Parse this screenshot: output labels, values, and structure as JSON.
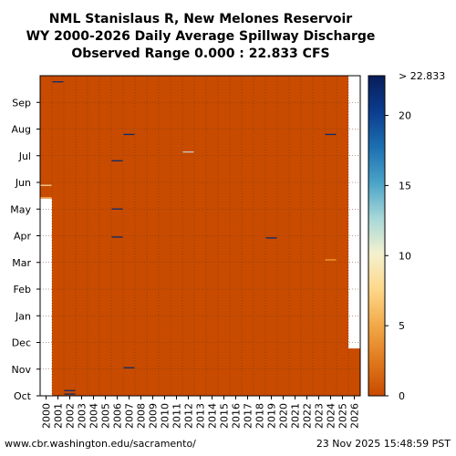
{
  "chart_data": {
    "type": "heatmap",
    "title_lines": [
      "NML Stanislaus R, New Melones Reservoir",
      "WY 2000-2026 Daily Average Spillway Discharge",
      "Observed Range 0.000 : 22.833 CFS"
    ],
    "x_categories": [
      "2000",
      "2001",
      "2002",
      "2003",
      "2004",
      "2005",
      "2006",
      "2007",
      "2008",
      "2009",
      "2010",
      "2011",
      "2012",
      "2013",
      "2014",
      "2015",
      "2016",
      "2017",
      "2018",
      "2019",
      "2020",
      "2021",
      "2022",
      "2023",
      "2024",
      "2025",
      "2026"
    ],
    "y_months": [
      "Oct",
      "Nov",
      "Dec",
      "Jan",
      "Feb",
      "Mar",
      "Apr",
      "May",
      "Jun",
      "Jul",
      "Aug",
      "Sep"
    ],
    "value_range": [
      0,
      22.833
    ],
    "units": "CFS",
    "baseline_value": 0,
    "grid": true,
    "colorbar": {
      "ticks": [
        0,
        5,
        10,
        15,
        20
      ],
      "top_label": "> 22.833",
      "colors": [
        "#c84b00",
        "#e07a1e",
        "#f2aa4a",
        "#fdd88a",
        "#f4f1cf",
        "#a6d7d8",
        "#4aa3c8",
        "#1c6fb0",
        "#0b3c8e",
        "#081d58"
      ]
    },
    "missing": [
      {
        "year": "2000",
        "from_day": 0,
        "to_day": 225
      },
      {
        "year": "2026",
        "from_day": 54,
        "to_day": 365
      }
    ],
    "events": [
      {
        "year": "2000",
        "day": 226,
        "value": 4,
        "color": "#f0a030"
      },
      {
        "year": "2000",
        "day": 240,
        "value": 9,
        "color": "#f6d4a0"
      },
      {
        "year": "2001",
        "day": 358,
        "value": 22,
        "color": "#0a2a6a"
      },
      {
        "year": "2002",
        "day": 2,
        "value": 22,
        "color": "#0a2a6a"
      },
      {
        "year": "2002",
        "day": 6,
        "value": 22,
        "color": "#0a2a6a"
      },
      {
        "year": "2006",
        "day": 181,
        "value": 22,
        "color": "#0a2a6a"
      },
      {
        "year": "2006",
        "day": 213,
        "value": 22,
        "color": "#0a2a6a"
      },
      {
        "year": "2006",
        "day": 268,
        "value": 22,
        "color": "#0a2a6a"
      },
      {
        "year": "2007",
        "day": 32,
        "value": 22,
        "color": "#0a2a6a"
      },
      {
        "year": "2007",
        "day": 298,
        "value": 22,
        "color": "#0a2a6a"
      },
      {
        "year": "2012",
        "day": 278,
        "value": 12,
        "color": "#c8c8c8"
      },
      {
        "year": "2019",
        "day": 180,
        "value": 22,
        "color": "#0a2a6a"
      },
      {
        "year": "2024",
        "day": 155,
        "value": 4,
        "color": "#f0a030"
      },
      {
        "year": "2024",
        "day": 298,
        "value": 22,
        "color": "#0a2a6a"
      }
    ]
  },
  "footer": {
    "left": "www.cbr.washington.edu/sacramento/",
    "right": "23 Nov 2025 15:48:59 PST"
  }
}
